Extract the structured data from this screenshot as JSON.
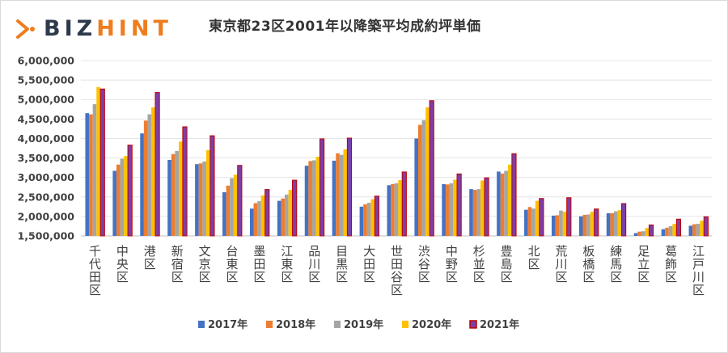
{
  "logo": {
    "text_biz": "BIZ",
    "text_hint": "HINT"
  },
  "chart_data": {
    "type": "bar",
    "title": "東京都23区2001年以降築平均成約坪単価",
    "xlabel": "",
    "ylabel": "",
    "ylim": [
      1500000,
      6000000
    ],
    "yticks": [
      "1,500,000",
      "2,000,000",
      "2,500,000",
      "3,000,000",
      "3,500,000",
      "4,000,000",
      "4,500,000",
      "5,000,000",
      "5,500,000",
      "6,000,000"
    ],
    "grid": true,
    "legend_position": "bottom",
    "categories": [
      "千代田区",
      "中央区",
      "港区",
      "新宿区",
      "文京区",
      "台東区",
      "墨田区",
      "江東区",
      "品川区",
      "目黒区",
      "大田区",
      "世田谷区",
      "渋谷区",
      "中野区",
      "杉並区",
      "豊島区",
      "北区",
      "荒川区",
      "板橋区",
      "練馬区",
      "足立区",
      "葛飾区",
      "江戸川区"
    ],
    "series": [
      {
        "name": "2017年",
        "color": "#4472c4",
        "values": [
          4650000,
          3170000,
          4130000,
          3450000,
          3340000,
          2620000,
          2200000,
          2400000,
          3300000,
          3430000,
          2250000,
          2800000,
          4000000,
          2830000,
          2700000,
          3150000,
          2170000,
          2020000,
          2000000,
          2080000,
          1570000,
          1670000,
          1760000
        ]
      },
      {
        "name": "2018年",
        "color": "#ed7d31",
        "values": [
          4620000,
          3330000,
          4460000,
          3600000,
          3360000,
          2790000,
          2340000,
          2460000,
          3420000,
          3620000,
          2310000,
          2830000,
          4350000,
          2820000,
          2680000,
          3100000,
          2240000,
          2030000,
          2040000,
          2080000,
          1610000,
          1710000,
          1800000
        ]
      },
      {
        "name": "2019年",
        "color": "#a5a5a5",
        "values": [
          4880000,
          3480000,
          4620000,
          3680000,
          3410000,
          2980000,
          2390000,
          2560000,
          3440000,
          3580000,
          2350000,
          2850000,
          4470000,
          2850000,
          2700000,
          3170000,
          2200000,
          2150000,
          2050000,
          2130000,
          1620000,
          1750000,
          1810000
        ]
      },
      {
        "name": "2020年",
        "color": "#ffc000",
        "values": [
          5320000,
          3550000,
          4800000,
          3920000,
          3700000,
          3070000,
          2540000,
          2680000,
          3530000,
          3720000,
          2440000,
          2930000,
          4800000,
          2940000,
          2920000,
          3330000,
          2400000,
          2120000,
          2120000,
          2160000,
          1700000,
          1810000,
          1890000
        ]
      },
      {
        "name": "2021年",
        "color": "#c00000",
        "values": [
          5270000,
          3830000,
          5180000,
          4300000,
          4070000,
          3310000,
          2690000,
          2930000,
          3990000,
          4010000,
          2520000,
          3140000,
          4970000,
          3090000,
          2990000,
          3610000,
          2460000,
          2480000,
          2190000,
          2330000,
          1780000,
          1930000,
          1990000
        ]
      }
    ]
  }
}
